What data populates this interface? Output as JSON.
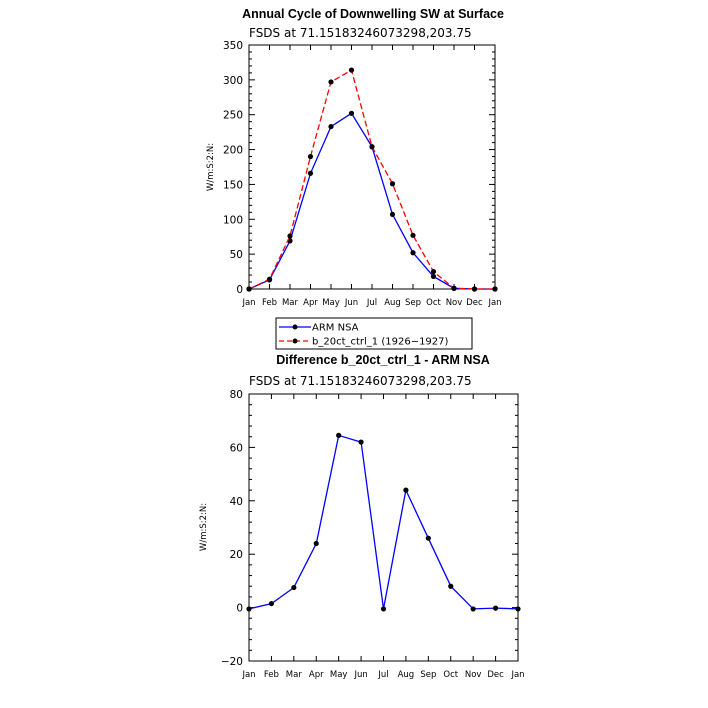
{
  "chart_data": [
    {
      "type": "line",
      "title": "Annual Cycle of Downwelling SW at Surface",
      "subtitle": "FSDS at 71.15183246073298,203.75",
      "ylabel": "W/m:S:2:N:",
      "xlabel": "",
      "categories": [
        "Jan",
        "Feb",
        "Mar",
        "Apr",
        "May",
        "Jun",
        "Jul",
        "Aug",
        "Sep",
        "Oct",
        "Nov",
        "Dec",
        "Jan"
      ],
      "ylim": [
        0,
        350
      ],
      "yticks": [
        0,
        50,
        100,
        150,
        200,
        250,
        300,
        350
      ],
      "series": [
        {
          "name": "ARM NSA",
          "color": "#0000ff",
          "dash": "solid",
          "values": [
            0,
            13,
            69,
            166,
            233,
            252,
            204,
            107,
            52,
            18,
            1,
            0,
            0
          ]
        },
        {
          "name": "b_20ct_ctrl_1 (1926−1927)",
          "color": "#ff0000",
          "dash": "dashed",
          "values": [
            0,
            14,
            76,
            190,
            297,
            314,
            204,
            151,
            77,
            25,
            1,
            0,
            0
          ]
        }
      ],
      "legend": "bottom"
    },
    {
      "type": "line",
      "title": "Difference b_20ct_ctrl_1 - ARM NSA",
      "subtitle": "FSDS at 71.15183246073298,203.75",
      "ylabel": "W/m:S:2:N:",
      "xlabel": "",
      "categories": [
        "Jan",
        "Feb",
        "Mar",
        "Apr",
        "May",
        "Jun",
        "Jul",
        "Aug",
        "Sep",
        "Oct",
        "Nov",
        "Dec",
        "Jan"
      ],
      "ylim": [
        -20,
        80
      ],
      "yticks": [
        -20,
        0,
        20,
        40,
        60,
        80
      ],
      "series": [
        {
          "color": "#0000ff",
          "dash": "solid",
          "values": [
            -0.5,
            1.5,
            7.5,
            24,
            64.5,
            62,
            -0.5,
            44,
            26,
            8,
            -0.5,
            -0.2,
            -0.5
          ]
        }
      ]
    }
  ]
}
